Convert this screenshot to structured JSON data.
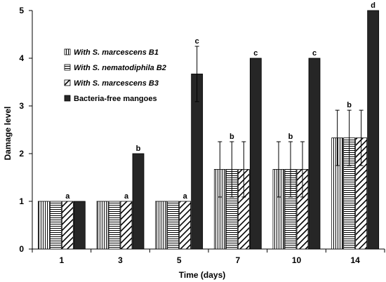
{
  "chart_data": {
    "type": "bar",
    "xlabel": "Time (days)",
    "ylabel": "Damage level",
    "ylim": [
      0,
      5
    ],
    "yticks": [
      "0",
      "1",
      "2",
      "3",
      "4",
      "5"
    ],
    "categories": [
      "1",
      "3",
      "5",
      "7",
      "10",
      "14"
    ],
    "grid": false,
    "legend_position": "top-left",
    "series": [
      {
        "name": "With S. marcescens B1",
        "legend_italic": true,
        "pattern": "vertical-lines",
        "values": [
          1,
          1,
          1,
          1.67,
          1.67,
          2.33
        ],
        "errors": [
          0,
          0,
          0,
          0.58,
          0.58,
          0.58
        ]
      },
      {
        "name": "With S. nematodiphila B2",
        "legend_italic": true,
        "pattern": "horizontal-lines",
        "values": [
          1,
          1,
          1,
          1.67,
          1.67,
          2.33
        ],
        "errors": [
          0,
          0,
          0,
          0.58,
          0.58,
          0.58
        ]
      },
      {
        "name": "With S. marcescens B3",
        "legend_italic": true,
        "pattern": "diagonal-lines",
        "values": [
          1,
          1,
          1,
          1.67,
          1.67,
          2.33
        ],
        "errors": [
          0,
          0,
          0,
          0.58,
          0.58,
          0.58
        ]
      },
      {
        "name": "Bacteria-free mangoes",
        "legend_italic": false,
        "pattern": "solid",
        "values": [
          1,
          2,
          3.67,
          4,
          4,
          5
        ],
        "errors": [
          0,
          0,
          0.58,
          0,
          0,
          0
        ]
      }
    ],
    "annotations": [
      {
        "category": "1",
        "series": 2,
        "text": "a"
      },
      {
        "category": "3",
        "series": 2,
        "text": "a"
      },
      {
        "category": "3",
        "series": 3,
        "text": "b"
      },
      {
        "category": "5",
        "series": 2,
        "text": "a"
      },
      {
        "category": "5",
        "series": 3,
        "text": "c"
      },
      {
        "category": "7",
        "series": 1,
        "text": "b"
      },
      {
        "category": "7",
        "series": 3,
        "text": "c"
      },
      {
        "category": "10",
        "series": 1,
        "text": "b"
      },
      {
        "category": "10",
        "series": 3,
        "text": "c"
      },
      {
        "category": "14",
        "series": 1,
        "text": "b"
      },
      {
        "category": "14",
        "series": 3,
        "text": "d"
      }
    ],
    "colors": {
      "bar_stroke": "#000000",
      "bar_fill": "#ffffff",
      "solid_fill": "#262626",
      "axis": "#000000"
    }
  }
}
